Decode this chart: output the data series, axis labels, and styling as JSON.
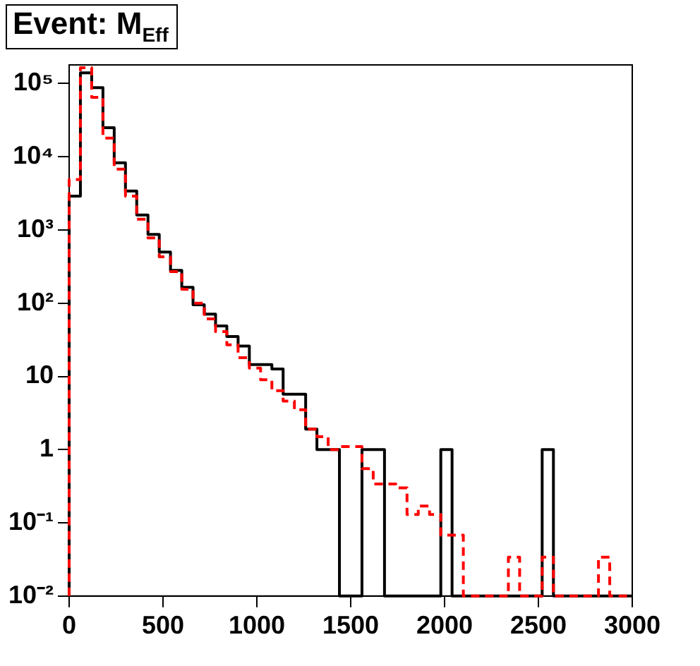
{
  "chart_data": {
    "type": "histogram",
    "title": "Event: M$_{Eff}$",
    "bins": [
      0,
      60,
      120,
      180,
      240,
      300,
      360,
      420,
      480,
      540,
      600,
      660,
      720,
      780,
      840,
      900,
      960,
      1020,
      1080,
      1140,
      1200,
      1260,
      1320,
      1380,
      1440,
      1500,
      1560,
      1620,
      1680,
      1740,
      1800,
      1860,
      1920,
      1980,
      2040,
      2100,
      2160,
      2220,
      2280,
      2340,
      2400,
      2460,
      2520,
      2580,
      2640,
      2700,
      2760,
      2820,
      2880,
      2940,
      3000
    ],
    "series": [
      {
        "color": "#000000",
        "line_style": "solid",
        "values": [
          2900,
          140000,
          88000,
          25000,
          8300,
          3400,
          1600,
          870,
          500,
          280,
          165,
          95,
          71,
          49,
          35,
          26,
          14.5,
          14.5,
          12.6,
          5.7,
          5.7,
          1.9,
          1,
          1,
          null,
          null,
          1,
          1,
          null,
          null,
          null,
          null,
          null,
          1,
          null,
          null,
          null,
          null,
          null,
          null,
          null,
          null,
          1,
          null,
          null,
          null,
          null,
          null,
          null,
          null
        ]
      },
      {
        "color": "#ff0000",
        "line_style": "dashed",
        "values": [
          4900,
          165000,
          65000,
          18000,
          6800,
          2900,
          1400,
          780,
          430,
          270,
          155,
          100,
          61,
          41,
          27,
          18,
          13,
          9,
          6.4,
          4.6,
          3.5,
          1.9,
          1.5,
          1.0,
          1.1,
          1.1,
          0.55,
          0.34,
          0.34,
          0.3,
          0.13,
          0.17,
          0.13,
          0.068,
          0.068,
          null,
          null,
          null,
          null,
          0.034,
          null,
          null,
          0.034,
          null,
          null,
          null,
          null,
          0.034,
          null,
          null
        ]
      }
    ],
    "log": "y",
    "xlim": [
      0,
      3000
    ],
    "xticks": [
      0,
      500,
      1000,
      1500,
      2000,
      2500,
      3000
    ],
    "ylim": [
      0.01,
      180000
    ],
    "yticks": [
      {
        "value": 0.01,
        "label": "10⁻²"
      },
      {
        "value": 0.1,
        "label": "10⁻¹"
      },
      1,
      10,
      {
        "value": 100,
        "label": "10²"
      },
      {
        "value": 1000,
        "label": "10³"
      },
      {
        "value": 10000,
        "label": "10⁴"
      },
      {
        "value": 100000,
        "label": "10⁵"
      }
    ],
    "grid": false,
    "legend": false
  }
}
